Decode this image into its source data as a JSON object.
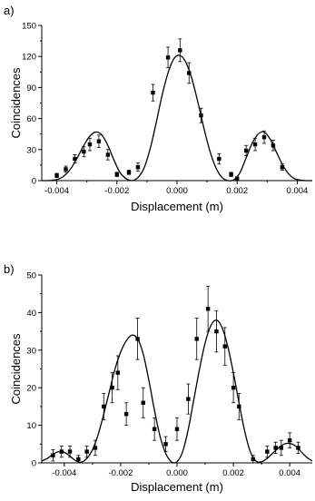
{
  "chart_data": [
    {
      "type": "scatter",
      "panel_label": "a)",
      "title": "",
      "xlabel": "Displacement (m)",
      "ylabel": "Coincidences",
      "xlim": [
        -0.0045,
        0.0045
      ],
      "ylim": [
        0,
        150
      ],
      "x_ticks": [
        -0.004,
        -0.002,
        0.0,
        0.002,
        0.004
      ],
      "x_tick_labels": [
        "-0.004",
        "-0.002",
        "0.000",
        "0.002",
        "0.004"
      ],
      "y_ticks": [
        0,
        30,
        60,
        90,
        120,
        150
      ],
      "y_tick_labels": [
        "0",
        "30",
        "60",
        "90",
        "120",
        "150"
      ],
      "grid": false,
      "points": [
        {
          "x": -0.004,
          "y": 5,
          "err": 2
        },
        {
          "x": -0.0037,
          "y": 11,
          "err": 3
        },
        {
          "x": -0.0034,
          "y": 21,
          "err": 4
        },
        {
          "x": -0.0031,
          "y": 28,
          "err": 5
        },
        {
          "x": -0.0029,
          "y": 35,
          "err": 6
        },
        {
          "x": -0.0026,
          "y": 38,
          "err": 6
        },
        {
          "x": -0.0023,
          "y": 25,
          "err": 5
        },
        {
          "x": -0.002,
          "y": 6,
          "err": 2
        },
        {
          "x": -0.0016,
          "y": 8,
          "err": 2
        },
        {
          "x": -0.0013,
          "y": 13,
          "err": 4
        },
        {
          "x": -0.0008,
          "y": 85,
          "err": 8
        },
        {
          "x": -0.0003,
          "y": 119,
          "err": 10
        },
        {
          "x": 0.0001,
          "y": 126,
          "err": 11
        },
        {
          "x": 0.0004,
          "y": 104,
          "err": 10
        },
        {
          "x": 0.0008,
          "y": 63,
          "err": 7
        },
        {
          "x": 0.0014,
          "y": 21,
          "err": 5
        },
        {
          "x": 0.0018,
          "y": 6,
          "err": 2
        },
        {
          "x": 0.002,
          "y": 2,
          "err": 1
        },
        {
          "x": 0.0023,
          "y": 29,
          "err": 5
        },
        {
          "x": 0.0026,
          "y": 35,
          "err": 6
        },
        {
          "x": 0.0029,
          "y": 42,
          "err": 6
        },
        {
          "x": 0.0032,
          "y": 34,
          "err": 5
        },
        {
          "x": 0.0035,
          "y": 13,
          "err": 3
        }
      ],
      "fit_curve": {
        "x": [
          -0.0045,
          -0.0043,
          -0.0041,
          -0.0039,
          -0.0037,
          -0.0035,
          -0.0033,
          -0.0031,
          -0.0029,
          -0.0027,
          -0.0025,
          -0.0023,
          -0.0021,
          -0.0019,
          -0.0017,
          -0.0015,
          -0.0013,
          -0.0011,
          -0.0009,
          -0.0007,
          -0.0005,
          -0.0003,
          -0.0001,
          0.0001,
          0.0003,
          0.0005,
          0.0007,
          0.0009,
          0.0011,
          0.0013,
          0.0015,
          0.0017,
          0.0019,
          0.0021,
          0.0023,
          0.0025,
          0.0027,
          0.0029,
          0.0031,
          0.0033,
          0.0035,
          0.0037,
          0.0039,
          0.0041,
          0.0043,
          0.0045
        ],
        "y": [
          0,
          0,
          0.5,
          2,
          6,
          13,
          23,
          34,
          43,
          47,
          44,
          34,
          20,
          8,
          2,
          0,
          3,
          12,
          30,
          55,
          82,
          104,
          118,
          121,
          114,
          98,
          75,
          50,
          28,
          12,
          3,
          0,
          1,
          8,
          22,
          36,
          45,
          47,
          40,
          28,
          16,
          7,
          2,
          0.5,
          0,
          0
        ]
      }
    },
    {
      "type": "scatter",
      "panel_label": "b)",
      "title": "",
      "xlabel": "Displacement (m)",
      "ylabel": "Coincidences",
      "xlim": [
        -0.0048,
        0.0048
      ],
      "ylim": [
        0,
        50
      ],
      "x_ticks": [
        -0.004,
        -0.002,
        0.0,
        0.002,
        0.004
      ],
      "x_tick_labels": [
        "-0.004",
        "-0.002",
        "0.000",
        "0.002",
        "0.004"
      ],
      "y_ticks": [
        0,
        10,
        20,
        30,
        40,
        50
      ],
      "y_tick_labels": [
        "0",
        "10",
        "20",
        "30",
        "40",
        "50"
      ],
      "grid": false,
      "points": [
        {
          "x": -0.0044,
          "y": 2,
          "err": 1.5
        },
        {
          "x": -0.0041,
          "y": 3,
          "err": 1.5
        },
        {
          "x": -0.0038,
          "y": 3,
          "err": 1.5
        },
        {
          "x": -0.0035,
          "y": 1,
          "err": 1
        },
        {
          "x": -0.0032,
          "y": 3,
          "err": 1.5
        },
        {
          "x": -0.0029,
          "y": 4,
          "err": 2
        },
        {
          "x": -0.0026,
          "y": 15,
          "err": 3.5
        },
        {
          "x": -0.0023,
          "y": 20,
          "err": 4
        },
        {
          "x": -0.0021,
          "y": 24,
          "err": 4.5
        },
        {
          "x": -0.0018,
          "y": 13,
          "err": 3
        },
        {
          "x": -0.0014,
          "y": 33,
          "err": 5.5
        },
        {
          "x": -0.0012,
          "y": 16,
          "err": 4
        },
        {
          "x": -0.0008,
          "y": 9,
          "err": 3
        },
        {
          "x": -0.0004,
          "y": 5,
          "err": 2
        },
        {
          "x": 0.0,
          "y": 9,
          "err": 3
        },
        {
          "x": 0.0004,
          "y": 17,
          "err": 4
        },
        {
          "x": 0.0007,
          "y": 33,
          "err": 5.5
        },
        {
          "x": 0.0011,
          "y": 41,
          "err": 6
        },
        {
          "x": 0.0014,
          "y": 35,
          "err": 5.5
        },
        {
          "x": 0.0017,
          "y": 31,
          "err": 5
        },
        {
          "x": 0.002,
          "y": 20,
          "err": 4
        },
        {
          "x": 0.0022,
          "y": 15,
          "err": 3.5
        },
        {
          "x": 0.0027,
          "y": 1,
          "err": 1
        },
        {
          "x": 0.0032,
          "y": 3,
          "err": 1.5
        },
        {
          "x": 0.0035,
          "y": 4,
          "err": 1.5
        },
        {
          "x": 0.0037,
          "y": 4,
          "err": 2
        },
        {
          "x": 0.004,
          "y": 6,
          "err": 2
        },
        {
          "x": 0.0043,
          "y": 4,
          "err": 1.5
        }
      ],
      "fit_curve": {
        "x": [
          -0.0048,
          -0.0046,
          -0.0044,
          -0.0042,
          -0.004,
          -0.0038,
          -0.0036,
          -0.0034,
          -0.0032,
          -0.003,
          -0.0028,
          -0.0026,
          -0.0024,
          -0.0022,
          -0.002,
          -0.0018,
          -0.0016,
          -0.0014,
          -0.0012,
          -0.001,
          -0.0008,
          -0.0006,
          -0.0004,
          -0.0002,
          0.0,
          0.0002,
          0.0004,
          0.0006,
          0.0008,
          0.001,
          0.0012,
          0.0014,
          0.0016,
          0.0018,
          0.002,
          0.0022,
          0.0024,
          0.0026,
          0.0028,
          0.003,
          0.0032,
          0.0034,
          0.0036,
          0.0038,
          0.004,
          0.0042,
          0.0044,
          0.0046,
          0.0048
        ],
        "y": [
          0.5,
          1.2,
          2.3,
          3,
          2.8,
          1.8,
          0.6,
          0.2,
          1.2,
          3.5,
          7.5,
          13,
          19,
          25,
          29.5,
          32.5,
          34,
          33,
          29,
          22,
          14,
          7,
          2.5,
          0.3,
          0.3,
          3,
          9,
          17,
          25,
          32,
          36.5,
          38,
          36,
          31,
          24,
          16,
          8.5,
          3,
          0.5,
          0.3,
          1.2,
          2.6,
          4,
          5,
          5.2,
          4.5,
          3,
          1.5,
          0.5
        ]
      }
    }
  ]
}
